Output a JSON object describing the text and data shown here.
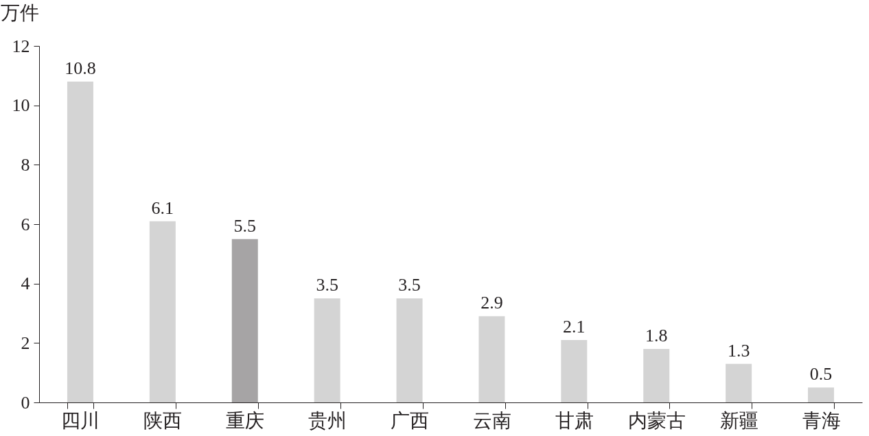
{
  "chart_data": {
    "type": "bar",
    "ylabel": "万件",
    "categories": [
      "四川",
      "陕西",
      "重庆",
      "贵州",
      "广西",
      "云南",
      "甘肃",
      "内蒙古",
      "新疆",
      "青海"
    ],
    "values": [
      10.8,
      6.1,
      5.5,
      3.5,
      3.5,
      2.9,
      2.1,
      1.8,
      1.3,
      0.5
    ],
    "colors": [
      "#d4d4d4",
      "#d4d4d4",
      "#a6a4a5",
      "#d4d4d4",
      "#d4d4d4",
      "#d4d4d4",
      "#d4d4d4",
      "#d4d4d4",
      "#d4d4d4",
      "#d4d4d4"
    ],
    "ylim": [
      0,
      12
    ],
    "yticks": [
      0,
      2,
      4,
      6,
      8,
      10,
      12
    ],
    "grid": false,
    "data_labels": true
  }
}
